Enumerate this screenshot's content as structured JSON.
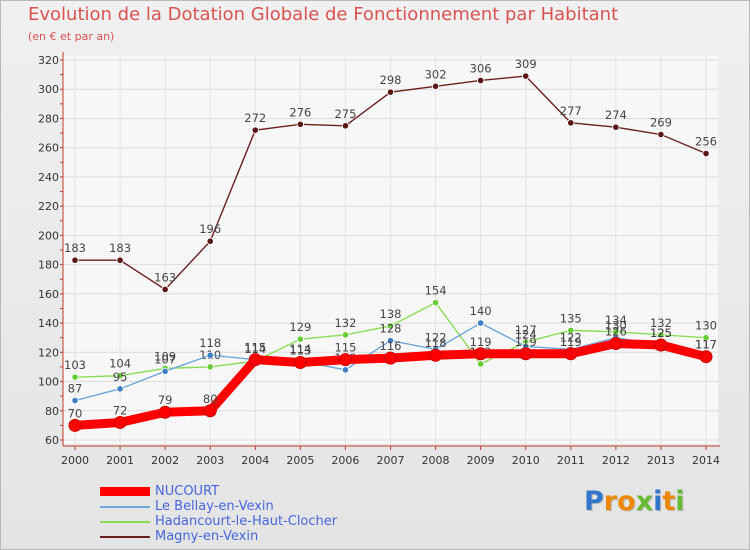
{
  "title": "Evolution de la Dotation Globale de Fonctionnement par Habitant",
  "subtitle": "(en € et par an)",
  "brand": "Proxiti",
  "colors": {
    "title": "#d9534f",
    "axis": "#c0392b",
    "legend_text": "#4466dd"
  },
  "chart_data": {
    "type": "line",
    "title": "Evolution de la Dotation Globale de Fonctionnement par Habitant",
    "subtitle": "(en € et par an)",
    "xlabel": "",
    "ylabel": "",
    "ylim": [
      60,
      320
    ],
    "yticks": [
      60,
      80,
      100,
      120,
      140,
      160,
      180,
      200,
      220,
      240,
      260,
      280,
      300,
      320
    ],
    "categories": [
      "2000",
      "2001",
      "2002",
      "2003",
      "2004",
      "2005",
      "2006",
      "2007",
      "2008",
      "2009",
      "2010",
      "2011",
      "2012",
      "2013",
      "2014"
    ],
    "grid": true,
    "legend_position": "bottom",
    "series": [
      {
        "name": "Magny-en-Vexin",
        "color": "#6b1f1f",
        "marker": "#5a1515",
        "values": [
          183,
          183,
          163,
          196,
          272,
          276,
          275,
          298,
          302,
          306,
          309,
          277,
          274,
          269,
          256
        ],
        "labels": [
          "183",
          "183",
          "163",
          "196",
          "272",
          "276",
          "275",
          "298",
          "302",
          "306",
          "309",
          "277",
          "274",
          "269",
          "256"
        ]
      },
      {
        "name": "Hadancourt-le-Haut-Clocher",
        "color": "#88dd55",
        "marker": "#66cc33",
        "values": [
          103,
          104,
          109,
          110,
          114,
          129,
          132,
          138,
          154,
          112,
          127,
          135,
          134,
          132,
          130
        ],
        "labels": [
          "103",
          "104",
          "109",
          "110",
          "114",
          "129",
          "132",
          "138",
          "154",
          "112",
          "127",
          "135",
          "134",
          "132",
          "130"
        ]
      },
      {
        "name": "Le Bellay-en-Vexin",
        "color": "#6fa8dc",
        "marker": "#3d7fc1",
        "values": [
          87,
          95,
          107,
          118,
          115,
          114,
          108,
          128,
          122,
          140,
          124,
          122,
          130,
          125,
          117
        ],
        "labels": [
          "87",
          "95",
          "107",
          "118",
          "115",
          "114",
          "108",
          "128",
          "122",
          "140",
          "124",
          "122",
          "130",
          "125",
          "117"
        ]
      },
      {
        "name": "NUCOURT",
        "color": "#ff0000",
        "marker": "#ff0000",
        "values": [
          70,
          72,
          79,
          80,
          115,
          113,
          115,
          116,
          118,
          119,
          119,
          119,
          126,
          125,
          117
        ],
        "labels": [
          "70",
          "72",
          "79",
          "80",
          "115",
          "113",
          "115",
          "116",
          "118",
          "119",
          "119",
          "119",
          "126",
          "125",
          "117"
        ]
      }
    ]
  }
}
